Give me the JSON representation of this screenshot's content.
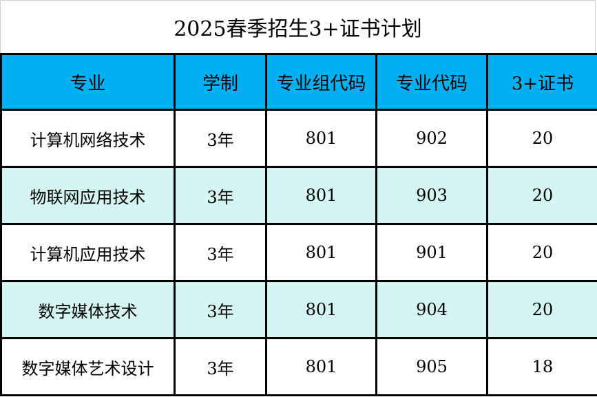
{
  "title": "2025春季招生3+证书计划",
  "colors": {
    "header_bg": "#00B0F0",
    "alt_row_bg": "#D5F5F3",
    "border": "#000000"
  },
  "table": {
    "headers": [
      "专业",
      "学制",
      "专业组代码",
      "专业代码",
      "3+证书"
    ],
    "rows": [
      [
        "计算机网络技术",
        "3年",
        "801",
        "902",
        "20"
      ],
      [
        "物联网应用技术",
        "3年",
        "801",
        "903",
        "20"
      ],
      [
        "计算机应用技术",
        "3年",
        "801",
        "901",
        "20"
      ],
      [
        "数字媒体技术",
        "3年",
        "801",
        "904",
        "20"
      ],
      [
        "数字媒体艺术设计",
        "3年",
        "801",
        "905",
        "18"
      ]
    ]
  }
}
